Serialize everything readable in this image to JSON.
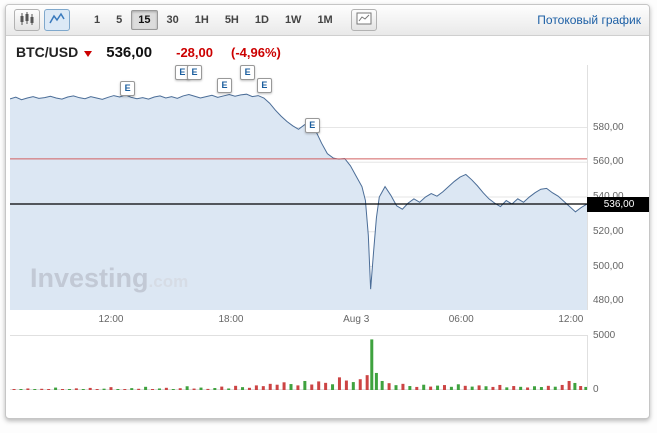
{
  "toolbar": {
    "chart_type_buttons": [
      {
        "name": "candlestick-chart-button",
        "icon": "candlestick-icon"
      },
      {
        "name": "line-chart-button",
        "icon": "line-chart-icon",
        "active": true
      }
    ],
    "timeframes": [
      {
        "label": "1"
      },
      {
        "label": "5"
      },
      {
        "label": "15",
        "active": true
      },
      {
        "label": "30"
      },
      {
        "label": "1H"
      },
      {
        "label": "5H"
      },
      {
        "label": "1D"
      },
      {
        "label": "1W"
      },
      {
        "label": "1M"
      }
    ],
    "indicators_button_icon": "mini-chart-icon",
    "streaming_link": "Потоковый график"
  },
  "header": {
    "symbol": "BTC/USD",
    "price": "536,00",
    "change": "-28,00",
    "change_pct": "(-4,96%)"
  },
  "watermark": {
    "brand": "Investing",
    "tld": ".com"
  },
  "colors": {
    "accent_link": "#1c5fa5",
    "negative": "#cc0000",
    "line": "#4b6d97",
    "area_fill": "#dce7f3",
    "red_level_line": "#d26060",
    "price_line": "#000000",
    "volume_up": "#3fa23f",
    "volume_down": "#cc4444",
    "grid": "#e6e6e6",
    "axis_text": "#666666"
  },
  "chart_data": {
    "type": "area",
    "title": "BTC/USD 15-minute streaming chart with volume",
    "legend": "none",
    "grid": "horizontal",
    "x_axis_labels": [
      {
        "label": "12:00",
        "x_pct": 17.5
      },
      {
        "label": "18:00",
        "x_pct": 38.3
      },
      {
        "label": "Aug 3",
        "x_pct": 60.0
      },
      {
        "label": "06:00",
        "x_pct": 78.2
      },
      {
        "label": "12:00",
        "x_pct": 97.2
      }
    ],
    "y_ticks": [
      {
        "label": "580,00",
        "value": 580
      },
      {
        "label": "560,00",
        "value": 560
      },
      {
        "label": "540,00",
        "value": 540
      },
      {
        "label": "520,00",
        "value": 520
      },
      {
        "label": "500,00",
        "value": 500
      },
      {
        "label": "480,00",
        "value": 480
      }
    ],
    "y_domain": [
      475,
      616
    ],
    "last_price": 536,
    "last_price_label": "536,00",
    "red_line_value": 562,
    "price_series": [
      [
        0,
        596.5
      ],
      [
        1,
        597.5
      ],
      [
        2,
        596.0
      ],
      [
        3,
        597.0
      ],
      [
        4,
        597.8
      ],
      [
        5,
        596.8
      ],
      [
        6,
        597.2
      ],
      [
        7,
        598.0
      ],
      [
        8,
        597.0
      ],
      [
        9,
        596.4
      ],
      [
        10,
        597.6
      ],
      [
        11,
        598.2
      ],
      [
        12,
        597.2
      ],
      [
        13,
        596.6
      ],
      [
        14,
        597.8
      ],
      [
        15,
        597.0
      ],
      [
        16,
        596.2
      ],
      [
        17,
        597.4
      ],
      [
        18,
        598.4
      ],
      [
        19,
        597.6
      ],
      [
        20,
        598.8
      ],
      [
        21,
        597.4
      ],
      [
        22,
        596.6
      ],
      [
        23,
        597.2
      ],
      [
        24,
        596.4
      ],
      [
        25,
        597.6
      ],
      [
        26,
        598.2
      ],
      [
        27,
        597.0
      ],
      [
        28,
        597.8
      ],
      [
        29,
        596.8
      ],
      [
        30,
        598.2
      ],
      [
        31,
        599.0
      ],
      [
        32,
        598.0
      ],
      [
        33,
        597.0
      ],
      [
        34,
        597.8
      ],
      [
        35,
        598.6
      ],
      [
        36,
        597.4
      ],
      [
        37,
        598.2
      ],
      [
        38,
        599.0
      ],
      [
        39,
        598.0
      ],
      [
        40,
        598.8
      ],
      [
        41,
        599.2
      ],
      [
        42,
        597.8
      ],
      [
        43,
        598.4
      ],
      [
        44,
        597.0
      ],
      [
        45,
        594.0
      ],
      [
        46,
        590.0
      ],
      [
        47,
        586.5
      ],
      [
        48,
        583.5
      ],
      [
        49,
        581.0
      ],
      [
        50,
        579.0
      ],
      [
        51,
        581.5
      ],
      [
        52,
        583.0
      ],
      [
        53,
        578.0
      ],
      [
        54,
        571.0
      ],
      [
        55,
        565.0
      ],
      [
        56,
        562.5
      ],
      [
        57,
        561.8
      ],
      [
        58,
        562.2
      ],
      [
        59,
        558.0
      ],
      [
        60,
        552.0
      ],
      [
        61,
        546.0
      ],
      [
        61.6,
        538.0
      ],
      [
        62.1,
        518.0
      ],
      [
        62.5,
        487.0
      ],
      [
        63,
        508.0
      ],
      [
        63.5,
        528.0
      ],
      [
        64,
        540.0
      ],
      [
        65,
        546.0
      ],
      [
        66,
        541.0
      ],
      [
        67,
        535.0
      ],
      [
        68,
        533.0
      ],
      [
        69,
        536.5
      ],
      [
        70,
        539.0
      ],
      [
        71,
        537.0
      ],
      [
        72,
        540.0
      ],
      [
        73,
        542.0
      ],
      [
        74,
        540.5
      ],
      [
        75,
        543.0
      ],
      [
        76,
        546.0
      ],
      [
        77,
        549.0
      ],
      [
        78,
        551.5
      ],
      [
        79,
        553.0
      ],
      [
        80,
        550.0
      ],
      [
        81,
        546.5
      ],
      [
        82,
        542.5
      ],
      [
        83,
        539.0
      ],
      [
        84,
        536.5
      ],
      [
        85,
        534.5
      ],
      [
        86,
        538.0
      ],
      [
        87,
        536.0
      ],
      [
        88,
        539.0
      ],
      [
        89,
        537.0
      ],
      [
        90,
        540.0
      ],
      [
        91,
        542.5
      ],
      [
        92,
        544.5
      ],
      [
        93,
        545.0
      ],
      [
        94,
        542.5
      ],
      [
        95,
        540.5
      ],
      [
        96,
        537.5
      ],
      [
        97,
        534.5
      ],
      [
        98,
        531.5
      ],
      [
        99,
        534.0
      ],
      [
        100,
        536.0
      ]
    ],
    "event_markers": [
      {
        "label": "E",
        "x_pct": 20.3,
        "y_pct": 9.5
      },
      {
        "label": "E",
        "x_pct": 29.8,
        "y_pct": 3.0
      },
      {
        "label": "E",
        "x_pct": 31.9,
        "y_pct": 3.0
      },
      {
        "label": "E",
        "x_pct": 37.1,
        "y_pct": 8.0
      },
      {
        "label": "E",
        "x_pct": 41.1,
        "y_pct": 3.0
      },
      {
        "label": "E",
        "x_pct": 44.0,
        "y_pct": 8.0
      },
      {
        "label": "E",
        "x_pct": 52.3,
        "y_pct": 24.5
      }
    ],
    "volume": {
      "y_max": 5000,
      "y_ticks": [
        {
          "label": "5000",
          "value": 5000
        },
        {
          "label": "0",
          "value": 0
        }
      ],
      "bars": [
        [
          0.7,
          90,
          "d"
        ],
        [
          1.9,
          60,
          "u"
        ],
        [
          3.1,
          140,
          "d"
        ],
        [
          4.3,
          50,
          "u"
        ],
        [
          5.5,
          110,
          "d"
        ],
        [
          6.7,
          70,
          "d"
        ],
        [
          7.9,
          220,
          "u"
        ],
        [
          9.1,
          90,
          "d"
        ],
        [
          10.3,
          60,
          "u"
        ],
        [
          11.5,
          150,
          "d"
        ],
        [
          12.7,
          80,
          "u"
        ],
        [
          13.9,
          190,
          "d"
        ],
        [
          15.1,
          70,
          "d"
        ],
        [
          16.3,
          120,
          "u"
        ],
        [
          17.5,
          260,
          "d"
        ],
        [
          18.7,
          90,
          "u"
        ],
        [
          19.9,
          70,
          "d"
        ],
        [
          21.1,
          170,
          "u"
        ],
        [
          22.3,
          110,
          "d"
        ],
        [
          23.5,
          290,
          "u"
        ],
        [
          24.7,
          80,
          "d"
        ],
        [
          25.9,
          140,
          "u"
        ],
        [
          27.1,
          200,
          "d"
        ],
        [
          28.3,
          70,
          "u"
        ],
        [
          29.5,
          160,
          "d"
        ],
        [
          30.7,
          340,
          "u"
        ],
        [
          31.9,
          130,
          "d"
        ],
        [
          33.1,
          220,
          "u"
        ],
        [
          34.3,
          100,
          "d"
        ],
        [
          35.5,
          180,
          "u"
        ],
        [
          36.7,
          310,
          "d"
        ],
        [
          37.9,
          140,
          "u"
        ],
        [
          39.1,
          380,
          "d"
        ],
        [
          40.3,
          260,
          "u"
        ],
        [
          41.5,
          200,
          "d"
        ],
        [
          42.7,
          420,
          "d"
        ],
        [
          43.9,
          350,
          "d"
        ],
        [
          45.1,
          560,
          "d"
        ],
        [
          46.3,
          480,
          "d"
        ],
        [
          47.5,
          700,
          "d"
        ],
        [
          48.7,
          540,
          "u"
        ],
        [
          49.9,
          420,
          "d"
        ],
        [
          51.1,
          820,
          "u"
        ],
        [
          52.3,
          500,
          "d"
        ],
        [
          53.5,
          780,
          "d"
        ],
        [
          54.7,
          650,
          "d"
        ],
        [
          55.9,
          520,
          "u"
        ],
        [
          57.1,
          1150,
          "d"
        ],
        [
          58.3,
          860,
          "d"
        ],
        [
          59.5,
          720,
          "u"
        ],
        [
          60.7,
          980,
          "d"
        ],
        [
          61.9,
          1350,
          "d"
        ],
        [
          62.7,
          4600,
          "u"
        ],
        [
          63.5,
          1550,
          "u"
        ],
        [
          64.5,
          820,
          "u"
        ],
        [
          65.7,
          620,
          "d"
        ],
        [
          66.9,
          440,
          "u"
        ],
        [
          68.1,
          560,
          "d"
        ],
        [
          69.3,
          360,
          "u"
        ],
        [
          70.5,
          280,
          "d"
        ],
        [
          71.7,
          480,
          "u"
        ],
        [
          72.9,
          310,
          "d"
        ],
        [
          74.1,
          400,
          "u"
        ],
        [
          75.3,
          450,
          "d"
        ],
        [
          76.5,
          290,
          "u"
        ],
        [
          77.7,
          520,
          "u"
        ],
        [
          78.9,
          380,
          "d"
        ],
        [
          80.1,
          310,
          "u"
        ],
        [
          81.3,
          420,
          "d"
        ],
        [
          82.5,
          340,
          "u"
        ],
        [
          83.7,
          280,
          "d"
        ],
        [
          84.9,
          460,
          "d"
        ],
        [
          86.1,
          240,
          "u"
        ],
        [
          87.3,
          360,
          "d"
        ],
        [
          88.5,
          290,
          "u"
        ],
        [
          89.7,
          230,
          "d"
        ],
        [
          90.9,
          340,
          "u"
        ],
        [
          92.1,
          270,
          "u"
        ],
        [
          93.3,
          380,
          "d"
        ],
        [
          94.5,
          300,
          "u"
        ],
        [
          95.7,
          460,
          "d"
        ],
        [
          96.9,
          820,
          "d"
        ],
        [
          97.9,
          640,
          "u"
        ],
        [
          98.9,
          360,
          "d"
        ],
        [
          99.8,
          280,
          "u"
        ]
      ]
    }
  }
}
